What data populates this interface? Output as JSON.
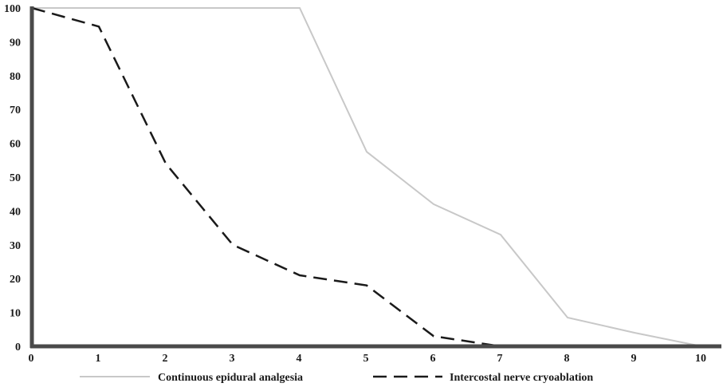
{
  "chart_data": {
    "type": "line",
    "xlim": [
      0,
      10
    ],
    "ylim": [
      0,
      100
    ],
    "xticks": [
      "0",
      "1",
      "2",
      "3",
      "4",
      "5",
      "6",
      "7",
      "8",
      "9",
      "10"
    ],
    "yticks": [
      "0",
      "10",
      "20",
      "30",
      "40",
      "50",
      "60",
      "70",
      "80",
      "90",
      "100"
    ],
    "grid": false,
    "legend_position": "bottom",
    "series": [
      {
        "name": "Continuous epidural analgesia",
        "color": "#c8c8c8",
        "style": "solid",
        "x": [
          0,
          1,
          2,
          3,
          4,
          5,
          6,
          7,
          8,
          9,
          10
        ],
        "y": [
          100,
          100,
          100,
          100,
          100,
          57.5,
          42,
          33,
          8.5,
          4,
          0
        ]
      },
      {
        "name": "Intercostal nerve cryoablation",
        "color": "#1a1a1a",
        "style": "dashed",
        "x": [
          0,
          1,
          2,
          3,
          4,
          5,
          6,
          7
        ],
        "y": [
          100,
          94.5,
          54,
          30,
          21,
          18,
          3,
          0
        ]
      }
    ]
  }
}
